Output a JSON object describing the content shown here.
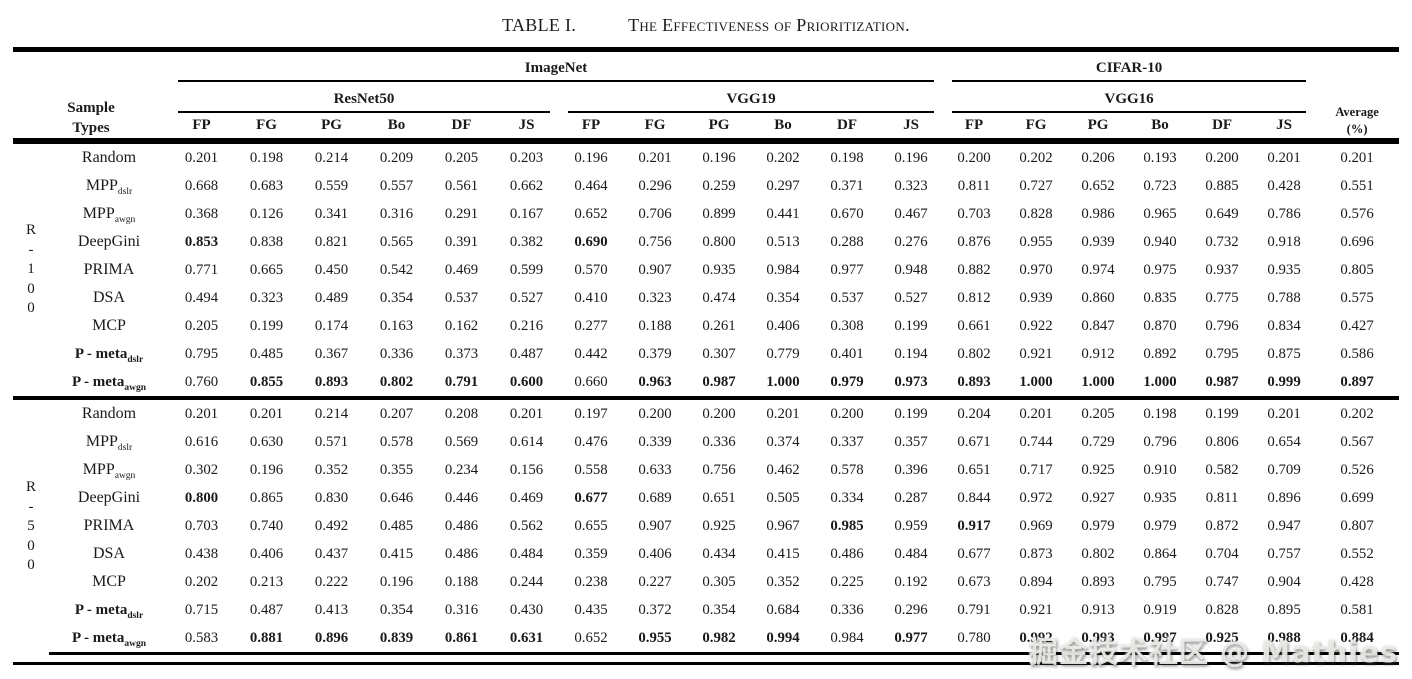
{
  "title": {
    "index": "TABLE I.",
    "caption": "The Effectiveness of Prioritization."
  },
  "watermark": "掘金技术社区 @ Mathies",
  "table": {
    "corner_header": [
      "Sample",
      "Types"
    ],
    "average_header": [
      "Average",
      "(%)"
    ],
    "metrics": [
      "FP",
      "FG",
      "PG",
      "Bo",
      "DF",
      "JS"
    ],
    "datasets": [
      {
        "name": "ImageNet",
        "models": [
          "ResNet50",
          "VGG19"
        ]
      },
      {
        "name": "CIFAR-10",
        "models": [
          "VGG16"
        ]
      }
    ],
    "sections": [
      {
        "group": "R-100",
        "rows": [
          {
            "label": "Random",
            "values": [
              "0.201",
              "0.198",
              "0.214",
              "0.209",
              "0.205",
              "0.203",
              "0.196",
              "0.201",
              "0.196",
              "0.202",
              "0.198",
              "0.196",
              "0.200",
              "0.202",
              "0.206",
              "0.193",
              "0.200",
              "0.201"
            ],
            "avg": "0.201"
          },
          {
            "label": "MPP",
            "sub": "dslr",
            "values": [
              "0.668",
              "0.683",
              "0.559",
              "0.557",
              "0.561",
              "0.662",
              "0.464",
              "0.296",
              "0.259",
              "0.297",
              "0.371",
              "0.323",
              "0.811",
              "0.727",
              "0.652",
              "0.723",
              "0.885",
              "0.428"
            ],
            "avg": "0.551"
          },
          {
            "label": "MPP",
            "sub": "awgn",
            "values": [
              "0.368",
              "0.126",
              "0.341",
              "0.316",
              "0.291",
              "0.167",
              "0.652",
              "0.706",
              "0.899",
              "0.441",
              "0.670",
              "0.467",
              "0.703",
              "0.828",
              "0.986",
              "0.965",
              "0.649",
              "0.786"
            ],
            "avg": "0.576"
          },
          {
            "label": "DeepGini",
            "values": [
              "0.853",
              "0.838",
              "0.821",
              "0.565",
              "0.391",
              "0.382",
              "0.690",
              "0.756",
              "0.800",
              "0.513",
              "0.288",
              "0.276",
              "0.876",
              "0.955",
              "0.939",
              "0.940",
              "0.732",
              "0.918"
            ],
            "avg": "0.696",
            "bold": [
              0,
              6
            ]
          },
          {
            "label": "PRIMA",
            "values": [
              "0.771",
              "0.665",
              "0.450",
              "0.542",
              "0.469",
              "0.599",
              "0.570",
              "0.907",
              "0.935",
              "0.984",
              "0.977",
              "0.948",
              "0.882",
              "0.970",
              "0.974",
              "0.975",
              "0.937",
              "0.935"
            ],
            "avg": "0.805"
          },
          {
            "label": "DSA",
            "values": [
              "0.494",
              "0.323",
              "0.489",
              "0.354",
              "0.537",
              "0.527",
              "0.410",
              "0.323",
              "0.474",
              "0.354",
              "0.537",
              "0.527",
              "0.812",
              "0.939",
              "0.860",
              "0.835",
              "0.775",
              "0.788"
            ],
            "avg": "0.575"
          },
          {
            "label": "MCP",
            "values": [
              "0.205",
              "0.199",
              "0.174",
              "0.163",
              "0.162",
              "0.216",
              "0.277",
              "0.188",
              "0.261",
              "0.406",
              "0.308",
              "0.199",
              "0.661",
              "0.922",
              "0.847",
              "0.870",
              "0.796",
              "0.834"
            ],
            "avg": "0.427"
          },
          {
            "label": "P - meta",
            "sub": "dslr",
            "label_bold": true,
            "values": [
              "0.795",
              "0.485",
              "0.367",
              "0.336",
              "0.373",
              "0.487",
              "0.442",
              "0.379",
              "0.307",
              "0.779",
              "0.401",
              "0.194",
              "0.802",
              "0.921",
              "0.912",
              "0.892",
              "0.795",
              "0.875"
            ],
            "avg": "0.586"
          },
          {
            "label": "P - meta",
            "sub": "awgn",
            "label_bold": true,
            "values": [
              "0.760",
              "0.855",
              "0.893",
              "0.802",
              "0.791",
              "0.600",
              "0.660",
              "0.963",
              "0.987",
              "1.000",
              "0.979",
              "0.973",
              "0.893",
              "1.000",
              "1.000",
              "1.000",
              "0.987",
              "0.999"
            ],
            "avg": "0.897",
            "bold": [
              1,
              2,
              3,
              4,
              5,
              7,
              8,
              9,
              10,
              11,
              12,
              13,
              14,
              15,
              16,
              17
            ],
            "avg_bold": true
          }
        ]
      },
      {
        "group": "R-500",
        "rows": [
          {
            "label": "Random",
            "values": [
              "0.201",
              "0.201",
              "0.214",
              "0.207",
              "0.208",
              "0.201",
              "0.197",
              "0.200",
              "0.200",
              "0.201",
              "0.200",
              "0.199",
              "0.204",
              "0.201",
              "0.205",
              "0.198",
              "0.199",
              "0.201"
            ],
            "avg": "0.202"
          },
          {
            "label": "MPP",
            "sub": "dslr",
            "values": [
              "0.616",
              "0.630",
              "0.571",
              "0.578",
              "0.569",
              "0.614",
              "0.476",
              "0.339",
              "0.336",
              "0.374",
              "0.337",
              "0.357",
              "0.671",
              "0.744",
              "0.729",
              "0.796",
              "0.806",
              "0.654"
            ],
            "avg": "0.567"
          },
          {
            "label": "MPP",
            "sub": "awgn",
            "values": [
              "0.302",
              "0.196",
              "0.352",
              "0.355",
              "0.234",
              "0.156",
              "0.558",
              "0.633",
              "0.756",
              "0.462",
              "0.578",
              "0.396",
              "0.651",
              "0.717",
              "0.925",
              "0.910",
              "0.582",
              "0.709"
            ],
            "avg": "0.526"
          },
          {
            "label": "DeepGini",
            "values": [
              "0.800",
              "0.865",
              "0.830",
              "0.646",
              "0.446",
              "0.469",
              "0.677",
              "0.689",
              "0.651",
              "0.505",
              "0.334",
              "0.287",
              "0.844",
              "0.972",
              "0.927",
              "0.935",
              "0.811",
              "0.896"
            ],
            "avg": "0.699",
            "bold": [
              0,
              6
            ]
          },
          {
            "label": "PRIMA",
            "values": [
              "0.703",
              "0.740",
              "0.492",
              "0.485",
              "0.486",
              "0.562",
              "0.655",
              "0.907",
              "0.925",
              "0.967",
              "0.985",
              "0.959",
              "0.917",
              "0.969",
              "0.979",
              "0.979",
              "0.872",
              "0.947"
            ],
            "avg": "0.807",
            "bold": [
              10,
              12
            ]
          },
          {
            "label": "DSA",
            "values": [
              "0.438",
              "0.406",
              "0.437",
              "0.415",
              "0.486",
              "0.484",
              "0.359",
              "0.406",
              "0.434",
              "0.415",
              "0.486",
              "0.484",
              "0.677",
              "0.873",
              "0.802",
              "0.864",
              "0.704",
              "0.757"
            ],
            "avg": "0.552"
          },
          {
            "label": "MCP",
            "values": [
              "0.202",
              "0.213",
              "0.222",
              "0.196",
              "0.188",
              "0.244",
              "0.238",
              "0.227",
              "0.305",
              "0.352",
              "0.225",
              "0.192",
              "0.673",
              "0.894",
              "0.893",
              "0.795",
              "0.747",
              "0.904"
            ],
            "avg": "0.428"
          },
          {
            "label": "P - meta",
            "sub": "dslr",
            "label_bold": true,
            "values": [
              "0.715",
              "0.487",
              "0.413",
              "0.354",
              "0.316",
              "0.430",
              "0.435",
              "0.372",
              "0.354",
              "0.684",
              "0.336",
              "0.296",
              "0.791",
              "0.921",
              "0.913",
              "0.919",
              "0.828",
              "0.895"
            ],
            "avg": "0.581"
          },
          {
            "label": "P - meta",
            "sub": "awgn",
            "label_bold": true,
            "values": [
              "0.583",
              "0.881",
              "0.896",
              "0.839",
              "0.861",
              "0.631",
              "0.652",
              "0.955",
              "0.982",
              "0.994",
              "0.984",
              "0.977",
              "0.780",
              "0.992",
              "0.993",
              "0.997",
              "0.925",
              "0.988"
            ],
            "avg": "0.884",
            "bold": [
              1,
              2,
              3,
              4,
              5,
              7,
              8,
              9,
              11,
              13,
              14,
              15,
              16,
              17
            ],
            "avg_bold": true
          }
        ]
      }
    ]
  }
}
